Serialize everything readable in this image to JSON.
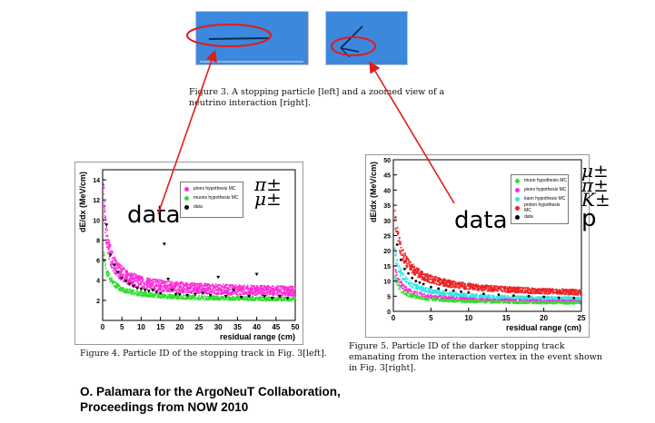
{
  "figure3": {
    "caption_label": "Figure 3.",
    "caption_text": " A stopping particle [left] and a zoomed view of a neutrino interaction [right]."
  },
  "figure4": {
    "caption_label": "Figure 4.",
    "caption_text": " Particle ID of the stopping track in Fig. 3[left].",
    "overlay_label": "data",
    "overlay_symbols": [
      "π±",
      "μ±"
    ],
    "legend": [
      {
        "label": "pions hypothesis MC",
        "color": "#ff2bd8"
      },
      {
        "label": "muons hypothesis MC",
        "color": "#33dd33"
      },
      {
        "label": "data",
        "color": "#000000"
      }
    ]
  },
  "figure5": {
    "caption_label": "Figure 5.",
    "caption_text": " Particle ID of the darker stopping track emanating from the interaction vertex in the event shown in Fig. 3[right].",
    "overlay_label": "data",
    "overlay_symbols": [
      "μ±",
      "π±",
      "K±",
      "p"
    ],
    "legend": [
      {
        "label": "muon hypothesis MC",
        "color": "#33dd33"
      },
      {
        "label": "pions hypothesis MC",
        "color": "#ff2bd8"
      },
      {
        "label": "kaon hypothesis MC",
        "color": "#33e5e5"
      },
      {
        "label": "proton hypothesis MC",
        "color": "#ee2222"
      },
      {
        "label": "data",
        "color": "#000000"
      }
    ]
  },
  "credit": {
    "line1": "O. Palamara for the ArgoNeuT Collaboration,",
    "line2": "Proceedings from NOW 2010"
  },
  "chart_data": [
    {
      "type": "scatter",
      "xlabel": "residual range (cm)",
      "ylabel": "dE/dx (MeV/cm)",
      "xlim": [
        0,
        50
      ],
      "ylim": [
        0,
        15
      ],
      "x_ticks": [
        0,
        5,
        10,
        15,
        20,
        25,
        30,
        35,
        40,
        45,
        50
      ],
      "y_ticks": [
        2,
        4,
        6,
        8,
        10,
        12,
        14
      ],
      "series": [
        {
          "name": "pions hypothesis MC",
          "color": "#ff2bd8"
        },
        {
          "name": "muons hypothesis MC",
          "color": "#33dd33"
        },
        {
          "name": "data",
          "color": "#000000",
          "x": [
            1,
            2,
            3,
            4,
            5,
            6,
            7,
            8,
            9,
            10,
            11,
            12,
            13,
            14,
            15,
            16,
            17,
            18,
            19,
            20,
            22,
            24,
            26,
            28,
            30,
            32,
            34,
            36,
            38,
            40,
            42,
            44,
            46,
            48
          ],
          "y": [
            9.5,
            6.5,
            5.5,
            4.8,
            4.2,
            3.9,
            3.6,
            3.4,
            3.2,
            3.1,
            3.0,
            2.9,
            3.0,
            2.8,
            2.7,
            7.6,
            4.1,
            3.0,
            2.6,
            2.6,
            2.5,
            2.6,
            2.7,
            2.5,
            4.3,
            2.4,
            3.0,
            2.3,
            2.4,
            4.6,
            2.4,
            2.2,
            2.4,
            2.2
          ]
        }
      ]
    },
    {
      "type": "scatter",
      "xlabel": "residual range (cm)",
      "ylabel": "dE/dx (MeV/cm)",
      "xlim": [
        0,
        25
      ],
      "ylim": [
        0,
        50
      ],
      "x_ticks": [
        0,
        5,
        10,
        15,
        20,
        25
      ],
      "y_ticks": [
        0,
        5,
        10,
        15,
        20,
        25,
        30,
        35,
        40,
        45,
        50
      ],
      "series": [
        {
          "name": "muon hypothesis MC",
          "color": "#33dd33"
        },
        {
          "name": "pions hypothesis MC",
          "color": "#ff2bd8"
        },
        {
          "name": "kaon hypothesis MC",
          "color": "#33e5e5"
        },
        {
          "name": "proton hypothesis MC",
          "color": "#ee2222"
        },
        {
          "name": "data",
          "color": "#000000",
          "x": [
            0.5,
            1,
            1.5,
            2,
            2.5,
            3,
            3.5,
            4,
            5,
            6,
            7,
            8,
            9,
            10,
            12,
            14,
            16,
            18,
            20,
            22,
            24
          ],
          "y": [
            22,
            17,
            14,
            12.5,
            11,
            10,
            9.5,
            9,
            8,
            7.5,
            7,
            6.8,
            6.5,
            6.2,
            5.8,
            5.5,
            5.2,
            5,
            4.8,
            4.5,
            4.4
          ]
        }
      ]
    }
  ]
}
